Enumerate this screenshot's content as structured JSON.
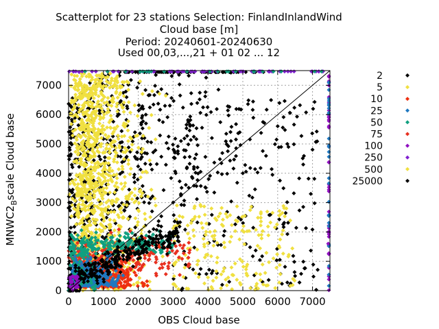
{
  "chart_data": {
    "type": "scatter",
    "title_lines": [
      "Scatterplot for   23 stations Selection: FinlandInlandWind",
      "Cloud base [m]",
      "Period: 20240601-20240630",
      "Used 00,03,...,21 + 01 02 ... 12"
    ],
    "xlabel": "OBS Cloud base",
    "ylabel": {
      "main": "MNWC2",
      "subscript": "B",
      "rest": "scale Cloud base"
    },
    "xlim": [
      0,
      7500
    ],
    "ylim": [
      0,
      7500
    ],
    "xticks": [
      0,
      1000,
      2000,
      3000,
      4000,
      5000,
      6000,
      7000
    ],
    "yticks": [
      0,
      1000,
      2000,
      3000,
      4000,
      5000,
      6000,
      7000
    ],
    "grid": true,
    "diagonal": true,
    "legend_position": "right",
    "legend": [
      {
        "label": "2",
        "color": "#000000"
      },
      {
        "label": "5",
        "color": "#f0e040"
      },
      {
        "label": "10",
        "color": "#ee3010"
      },
      {
        "label": "25",
        "color": "#1f78c0"
      },
      {
        "label": "50",
        "color": "#10a080"
      },
      {
        "label": "75",
        "color": "#e83020"
      },
      {
        "label": "100",
        "color": "#9010c0"
      },
      {
        "label": "250",
        "color": "#8020d0"
      },
      {
        "label": "500",
        "color": "#f0e040"
      },
      {
        "label": "25000",
        "color": "#000000"
      }
    ],
    "points_sample": [
      {
        "x": 3700,
        "y": 4200,
        "series": "2"
      },
      {
        "x": 5000,
        "y": 4000,
        "series": "2"
      },
      {
        "x": 6500,
        "y": 500,
        "series": "2"
      },
      {
        "x": 4100,
        "y": 2800,
        "series": "5"
      },
      {
        "x": 2400,
        "y": 6800,
        "series": "5"
      },
      {
        "x": 2600,
        "y": 1500,
        "series": "10"
      },
      {
        "x": 1200,
        "y": 1200,
        "series": "25"
      },
      {
        "x": 1800,
        "y": 1700,
        "series": "50"
      },
      {
        "x": 300,
        "y": 7450,
        "series": "250"
      },
      {
        "x": 7450,
        "y": 1600,
        "series": "100"
      }
    ]
  }
}
